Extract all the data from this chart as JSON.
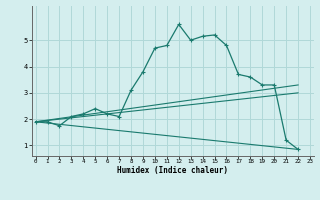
{
  "xlabel": "Humidex (Indice chaleur)",
  "background_color": "#d4eeee",
  "grid_color": "#b0d8d8",
  "line_color": "#1a7a6e",
  "x_ticks": [
    0,
    1,
    2,
    3,
    4,
    5,
    6,
    7,
    8,
    9,
    10,
    11,
    12,
    13,
    14,
    15,
    16,
    17,
    18,
    19,
    20,
    21,
    22,
    23
  ],
  "y_ticks": [
    1,
    2,
    3,
    4,
    5
  ],
  "xlim": [
    -0.3,
    23.3
  ],
  "ylim": [
    0.6,
    6.3
  ],
  "series": [
    {
      "x": [
        0,
        1,
        2,
        3,
        4,
        5,
        6,
        7,
        8,
        9,
        10,
        11,
        12,
        13,
        14,
        15,
        16,
        17,
        18,
        19,
        20,
        21,
        22
      ],
      "y": [
        1.9,
        1.9,
        1.75,
        2.1,
        2.2,
        2.4,
        2.2,
        2.1,
        3.1,
        3.8,
        4.7,
        4.8,
        5.6,
        5.0,
        5.15,
        5.2,
        4.8,
        3.7,
        3.6,
        3.3,
        3.3,
        1.2,
        0.85
      ]
    },
    {
      "x": [
        0,
        22
      ],
      "y": [
        1.9,
        3.3
      ]
    },
    {
      "x": [
        0,
        22
      ],
      "y": [
        1.9,
        3.0
      ]
    },
    {
      "x": [
        0,
        22
      ],
      "y": [
        1.9,
        0.85
      ]
    }
  ]
}
